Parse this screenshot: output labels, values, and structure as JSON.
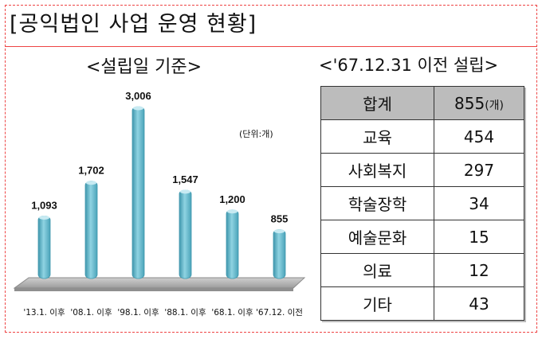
{
  "header": {
    "title": "[공익법인 사업 운영 현황]"
  },
  "chart_data": {
    "type": "bar",
    "title": "<설립일 기준>",
    "unit_label": "(단위:개)",
    "categories": [
      "'13.1. 이후",
      "'08.1. 이후",
      "'98.1. 이후",
      "'88.1. 이후",
      "'68.1. 이후",
      "'67.12. 이전"
    ],
    "values": [
      1093,
      1702,
      3006,
      1547,
      1200,
      855
    ],
    "value_labels": [
      "1,093",
      "1,702",
      "3,006",
      "1,547",
      "1,200",
      "855"
    ],
    "colors": {
      "bar": "#7ec8d8",
      "bar_dark": "#3f97ad",
      "bar_light": "#c7eaf2"
    },
    "grid": false,
    "legend": "none"
  },
  "table": {
    "title": "<'67.12.31 이전 설립>",
    "header": {
      "label": "합계",
      "value": "855",
      "unit": "(개)"
    },
    "rows": [
      {
        "label": "교육",
        "value": "454"
      },
      {
        "label": "사회복지",
        "value": "297"
      },
      {
        "label": "학술장학",
        "value": "34"
      },
      {
        "label": "예술문화",
        "value": "15"
      },
      {
        "label": "의료",
        "value": "12"
      },
      {
        "label": "기타",
        "value": "43"
      }
    ]
  }
}
